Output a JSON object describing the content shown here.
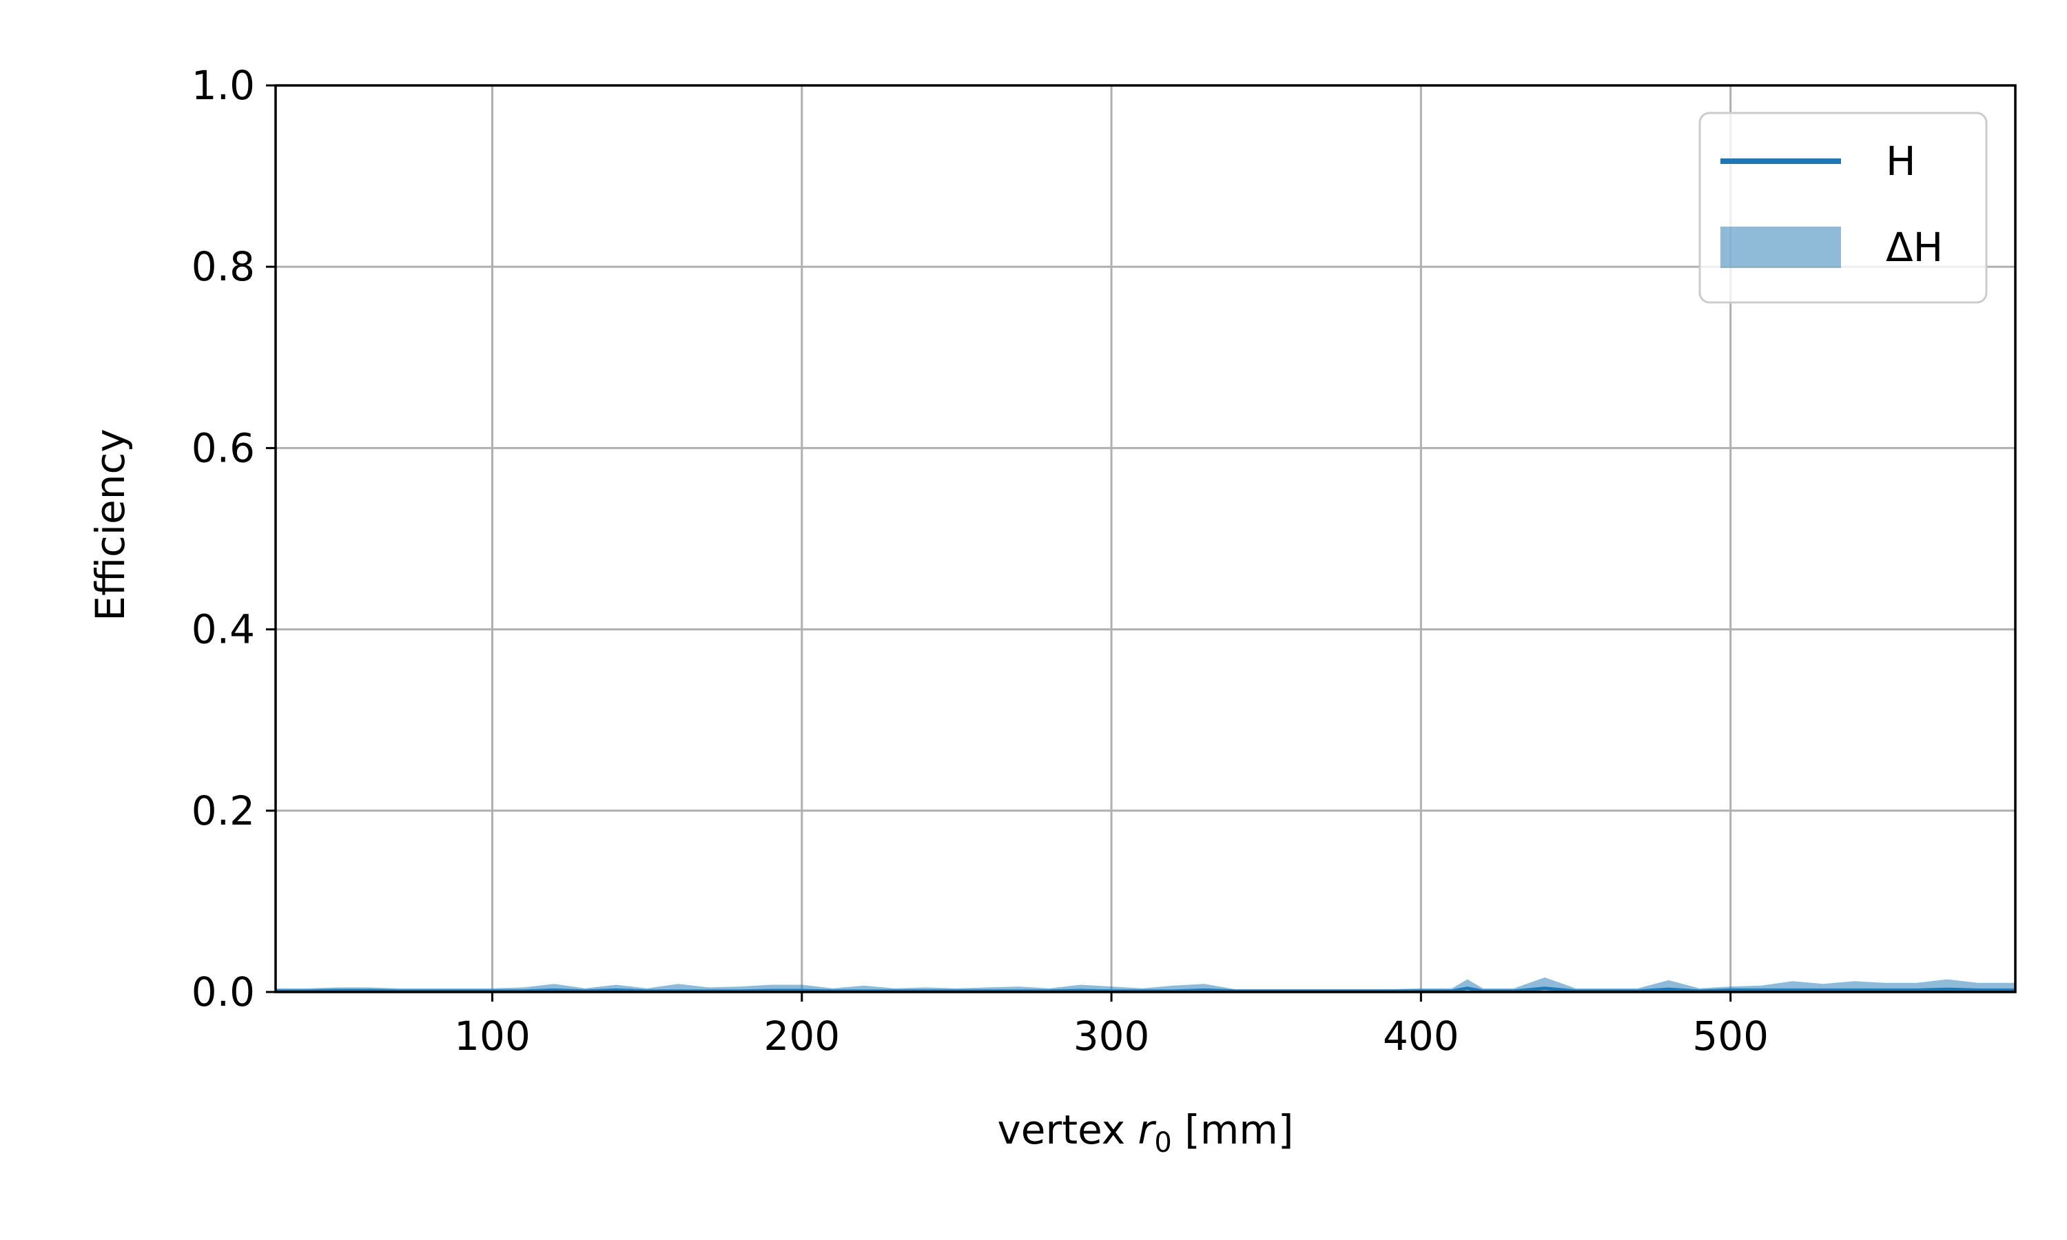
{
  "chart_data": {
    "type": "line",
    "title": "",
    "xlabel_prefix": "vertex ",
    "xlabel_symbol": "r",
    "xlabel_subscript": "0",
    "xlabel_suffix": " [mm]",
    "ylabel": "Efficiency",
    "xlim": [
      30,
      592
    ],
    "ylim": [
      0,
      1
    ],
    "xticks": [
      100,
      200,
      300,
      400,
      500
    ],
    "yticks": [
      0.0,
      0.2,
      0.4,
      0.6,
      0.8,
      1.0
    ],
    "xtick_labels": [
      "100",
      "200",
      "300",
      "400",
      "500"
    ],
    "ytick_labels": [
      "0.0",
      "0.2",
      "0.4",
      "0.6",
      "0.8",
      "1.0"
    ],
    "grid": true,
    "legend_position": "top-right",
    "colors": {
      "line": "#1f77b4",
      "band": "#1f77b4",
      "grid": "#b0b0b0"
    },
    "legend": [
      {
        "label": "H",
        "kind": "line"
      },
      {
        "label": "ΔH",
        "kind": "band"
      }
    ],
    "x": [
      30,
      40,
      50,
      60,
      70,
      80,
      90,
      100,
      110,
      120,
      130,
      140,
      150,
      160,
      170,
      180,
      190,
      200,
      210,
      220,
      230,
      240,
      250,
      260,
      270,
      280,
      290,
      300,
      310,
      320,
      330,
      340,
      350,
      360,
      370,
      380,
      390,
      400,
      410,
      415,
      420,
      430,
      440,
      450,
      460,
      470,
      480,
      490,
      500,
      510,
      520,
      530,
      540,
      550,
      560,
      570,
      580,
      592
    ],
    "series": [
      {
        "name": "H",
        "values": [
          0.001,
          0.001,
          0.0015,
          0.0015,
          0.001,
          0.001,
          0.001,
          0.001,
          0.001,
          0.002,
          0.001,
          0.002,
          0.001,
          0.001,
          0.001,
          0.001,
          0.0015,
          0.0015,
          0.001,
          0.001,
          0.001,
          0.001,
          0.001,
          0.001,
          0.001,
          0.001,
          0.0015,
          0.001,
          0.001,
          0.001,
          0.002,
          0.001,
          0.001,
          0.001,
          0.001,
          0.001,
          0.001,
          0.001,
          0.001,
          0.004,
          0.001,
          0.001,
          0.004,
          0.001,
          0.001,
          0.001,
          0.003,
          0.001,
          0.002,
          0.002,
          0.002,
          0.002,
          0.002,
          0.002,
          0.002,
          0.003,
          0.002,
          0.002
        ],
        "upper": [
          0.004,
          0.004,
          0.005,
          0.005,
          0.004,
          0.004,
          0.004,
          0.004,
          0.005,
          0.009,
          0.004,
          0.008,
          0.004,
          0.009,
          0.005,
          0.006,
          0.008,
          0.008,
          0.004,
          0.007,
          0.004,
          0.005,
          0.004,
          0.005,
          0.006,
          0.004,
          0.008,
          0.006,
          0.004,
          0.007,
          0.009,
          0.003,
          0.003,
          0.003,
          0.003,
          0.003,
          0.003,
          0.004,
          0.004,
          0.014,
          0.004,
          0.004,
          0.016,
          0.004,
          0.004,
          0.004,
          0.013,
          0.004,
          0.006,
          0.007,
          0.012,
          0.009,
          0.012,
          0.01,
          0.01,
          0.014,
          0.01,
          0.01
        ],
        "lower": [
          0,
          0,
          0,
          0,
          0,
          0,
          0,
          0,
          0,
          0,
          0,
          0,
          0,
          0,
          0,
          0,
          0,
          0,
          0,
          0,
          0,
          0,
          0,
          0,
          0,
          0,
          0,
          0,
          0,
          0,
          0,
          0,
          0,
          0,
          0,
          0,
          0,
          0,
          0,
          0,
          0,
          0,
          0,
          0,
          0,
          0,
          0,
          0,
          0,
          0,
          0,
          0,
          0,
          0,
          0,
          0,
          0,
          0
        ]
      }
    ]
  }
}
